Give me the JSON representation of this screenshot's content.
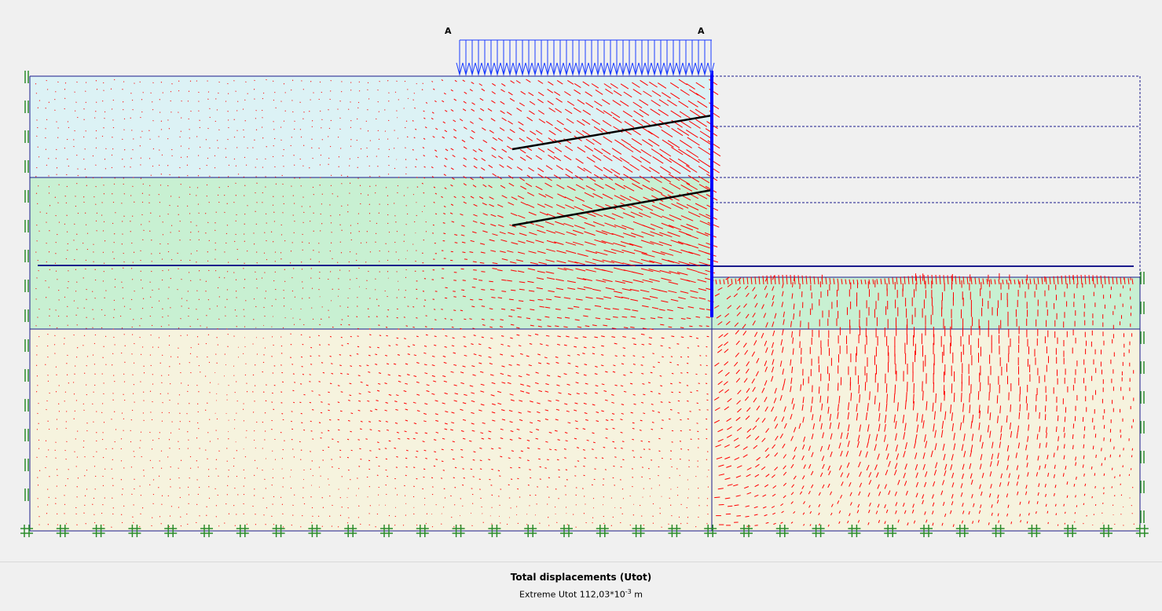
{
  "colors": {
    "background": "#f0f0f0",
    "layer1_fill": "#dcf2f5",
    "layer2_fill": "#c8f0d2",
    "layer3_fill": "#f6f3de",
    "boundary": "#1a1a8c",
    "wall": "#0000ff",
    "arrows": "#ff0000",
    "load": "#1a3cff",
    "anchor": "#000000",
    "fixity": "#2a8c2a"
  },
  "labels": {
    "load_point_left": "A",
    "load_point_right": "A"
  },
  "caption": {
    "title": "Total displacements (Utot)",
    "extreme_prefix": "Extreme Utot 112,03*10",
    "extreme_exponent": "-3",
    "extreme_unit": " m"
  }
}
